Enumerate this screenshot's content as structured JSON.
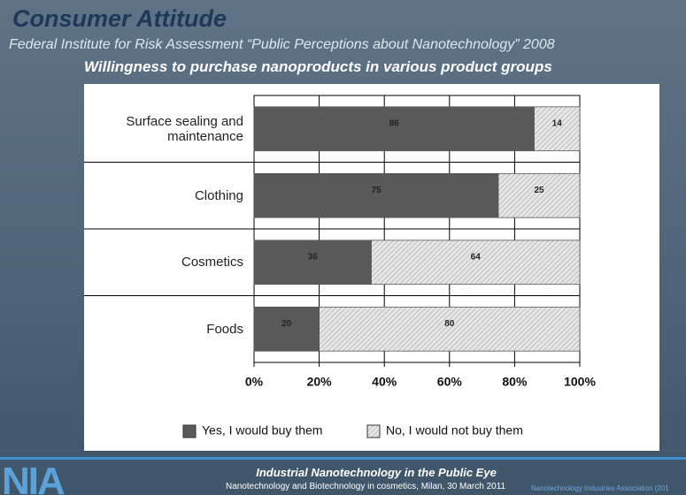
{
  "header": {
    "title": "Consumer Attitude",
    "subtitle": "Federal Institute for Risk Assessment “Public Perceptions about Nanotechnology” 2008"
  },
  "chart_data": {
    "type": "stacked_bar_horizontal",
    "title": "Willingness to purchase nanoproducts in various product groups",
    "categories": [
      "Surface sealing and maintenance",
      "Clothing",
      "Cosmetics",
      "Foods"
    ],
    "series": [
      {
        "name": "Yes, I would buy them",
        "color": "#595959",
        "values": [
          86,
          75,
          36,
          20
        ]
      },
      {
        "name": "No, I would not buy them",
        "color": "#e6e6e6",
        "values": [
          14,
          25,
          64,
          80
        ]
      }
    ],
    "xlim": [
      0,
      100
    ],
    "xticks": [
      {
        "value": 0,
        "label": "0%"
      },
      {
        "value": 20,
        "label": "20%"
      },
      {
        "value": 40,
        "label": "40%"
      },
      {
        "value": 60,
        "label": "60%"
      },
      {
        "value": 80,
        "label": "80%"
      },
      {
        "value": 100,
        "label": "100%"
      }
    ],
    "grid": true,
    "legend": "bottom"
  },
  "footer": {
    "event": "Industrial Nanotechnology in the Public Eye",
    "venue": "Nanotechnology  and Biotechnology in cosmetics, Milan, 30 March 2011",
    "credit": "Nanotechnology Industries Association (201",
    "logo": "NIA"
  }
}
